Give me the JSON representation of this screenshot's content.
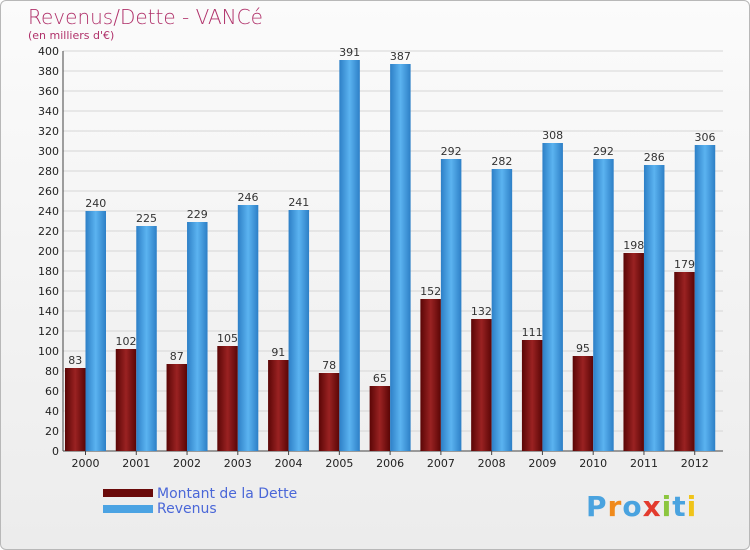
{
  "header": {
    "title": "Revenus/Dette - VANCé",
    "subtitle": "(en milliers d'€)"
  },
  "chart_data": {
    "type": "bar",
    "categories": [
      "2000",
      "2001",
      "2002",
      "2003",
      "2004",
      "2005",
      "2006",
      "2007",
      "2008",
      "2009",
      "2010",
      "2011",
      "2012"
    ],
    "series": [
      {
        "name": "Montant de la Dette",
        "color": "#7a0f0f",
        "values": [
          83,
          102,
          87,
          105,
          91,
          78,
          65,
          152,
          132,
          111,
          95,
          198,
          179
        ]
      },
      {
        "name": "Revenus",
        "color": "#4ba3e3",
        "values": [
          240,
          225,
          229,
          246,
          241,
          391,
          387,
          292,
          282,
          308,
          292,
          286,
          306
        ]
      }
    ],
    "ylim": [
      0,
      400
    ],
    "yticks": [
      0,
      20,
      40,
      60,
      80,
      100,
      120,
      140,
      160,
      180,
      200,
      220,
      240,
      260,
      280,
      300,
      320,
      340,
      360,
      380,
      400
    ],
    "grid": true,
    "legend": "bottom-left",
    "data_labels": true
  },
  "legend": {
    "items": [
      {
        "label": "Montant de la Dette",
        "color": "#7a0f0f"
      },
      {
        "label": "Revenus",
        "color": "#4ba3e3"
      }
    ]
  },
  "brand": {
    "letters": [
      {
        "ch": "P",
        "color": "#4aa3df"
      },
      {
        "ch": "r",
        "color": "#f08a1c"
      },
      {
        "ch": "o",
        "color": "#4aa3df"
      },
      {
        "ch": "x",
        "color": "#e33b2e"
      },
      {
        "ch": "i",
        "color": "#8cc63f"
      },
      {
        "ch": "t",
        "color": "#4aa3df"
      },
      {
        "ch": "i",
        "color": "#f0c419"
      }
    ]
  }
}
